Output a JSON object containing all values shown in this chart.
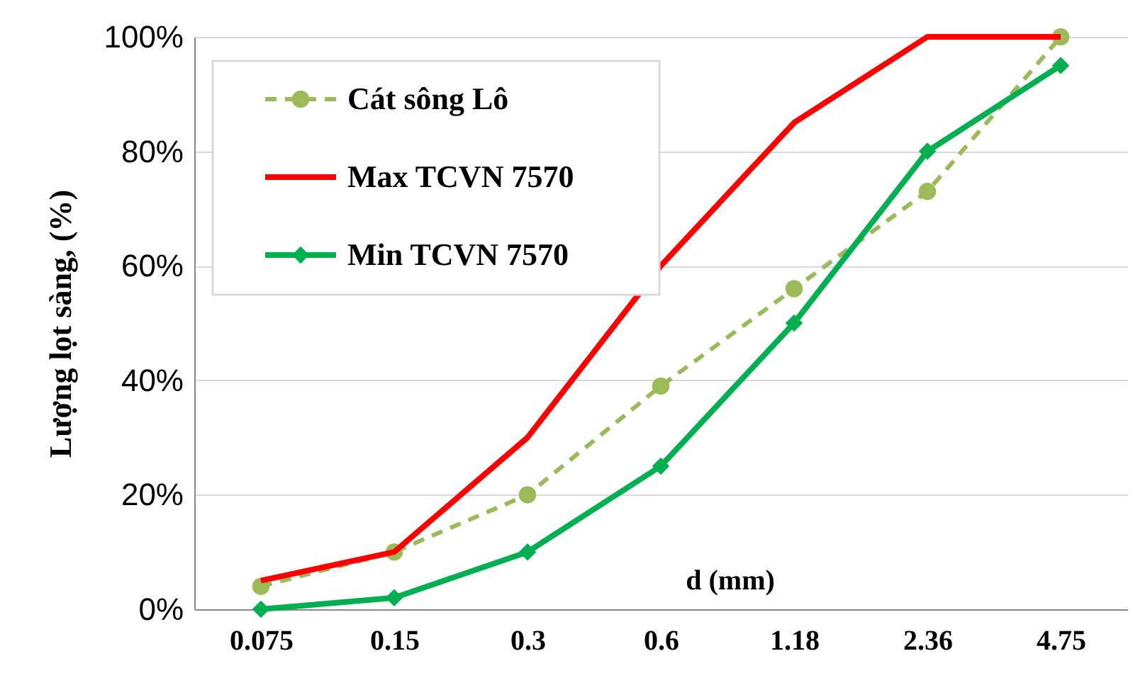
{
  "chart_data": {
    "type": "line",
    "xlabel": "d (mm)",
    "ylabel": "Lượng lọt sàng, (%)",
    "categories": [
      "0.075",
      "0.15",
      "0.3",
      "0.6",
      "1.18",
      "2.36",
      "4.75"
    ],
    "series": [
      {
        "name": "Cát sông Lô",
        "color": "#9bbb59",
        "marker": "circle",
        "line_style": "dashed",
        "values": [
          4,
          10,
          20,
          39,
          56,
          73,
          100
        ]
      },
      {
        "name": "Max TCVN 7570",
        "color": "#ff0000",
        "marker": "none",
        "line_style": "solid",
        "values": [
          5,
          10,
          30,
          60,
          85,
          100,
          100
        ]
      },
      {
        "name": "Min TCVN 7570",
        "color": "#00b050",
        "marker": "diamond",
        "line_style": "solid",
        "values": [
          0,
          2,
          10,
          25,
          50,
          80,
          95
        ]
      }
    ],
    "ylim": [
      0,
      100
    ],
    "yticks": [
      {
        "value": 0,
        "label": "0%"
      },
      {
        "value": 20,
        "label": "20%"
      },
      {
        "value": 40,
        "label": "40%"
      },
      {
        "value": 60,
        "label": "60%"
      },
      {
        "value": 80,
        "label": "80%"
      },
      {
        "value": 100,
        "label": "100%"
      }
    ],
    "grid": "y",
    "legend": "top left"
  }
}
